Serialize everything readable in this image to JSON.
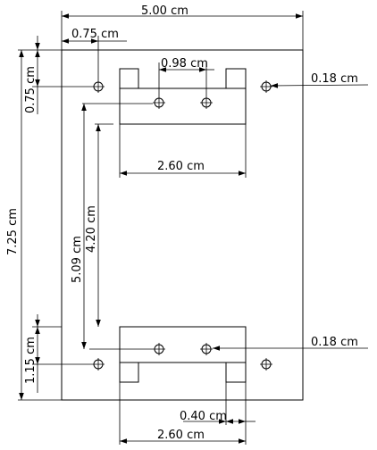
{
  "dimensions": {
    "overall_width": "5.00 cm",
    "hole_offset_x": "0.75 cm",
    "hole_offset_y": "0.75 cm",
    "top_hole_spacing": "0.98 cm",
    "top_hole_diameter": "0.18 cm",
    "top_bracket_width": "2.60 cm",
    "overall_height": "7.25 cm",
    "top_to_bottom_bracket": "4.20 cm",
    "top_to_bottom_hole": "5.09 cm",
    "bottom_hole_offset_y": "1.15 cm",
    "bottom_hole_diameter": "0.18 cm",
    "tab_width": "0.40 cm",
    "bottom_bracket_width": "2.60 cm"
  }
}
